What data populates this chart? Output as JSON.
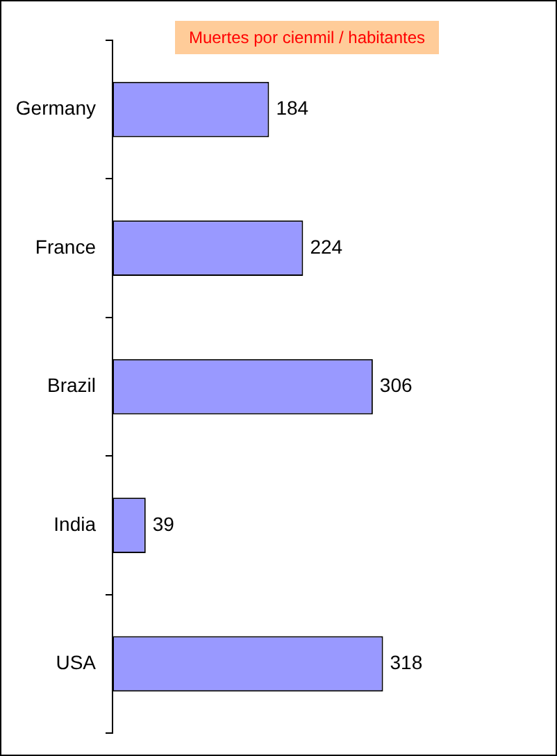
{
  "chart_data": {
    "type": "bar",
    "orientation": "horizontal",
    "title": "Muertes por cienmil / habitantes",
    "categories": [
      "Germany",
      "France",
      "Brazil",
      "India",
      "USA"
    ],
    "values": [
      184,
      224,
      306,
      39,
      318
    ],
    "color": "#9999ff",
    "data_labels": true,
    "grid": false,
    "legend": false,
    "tick_labels": "y"
  }
}
